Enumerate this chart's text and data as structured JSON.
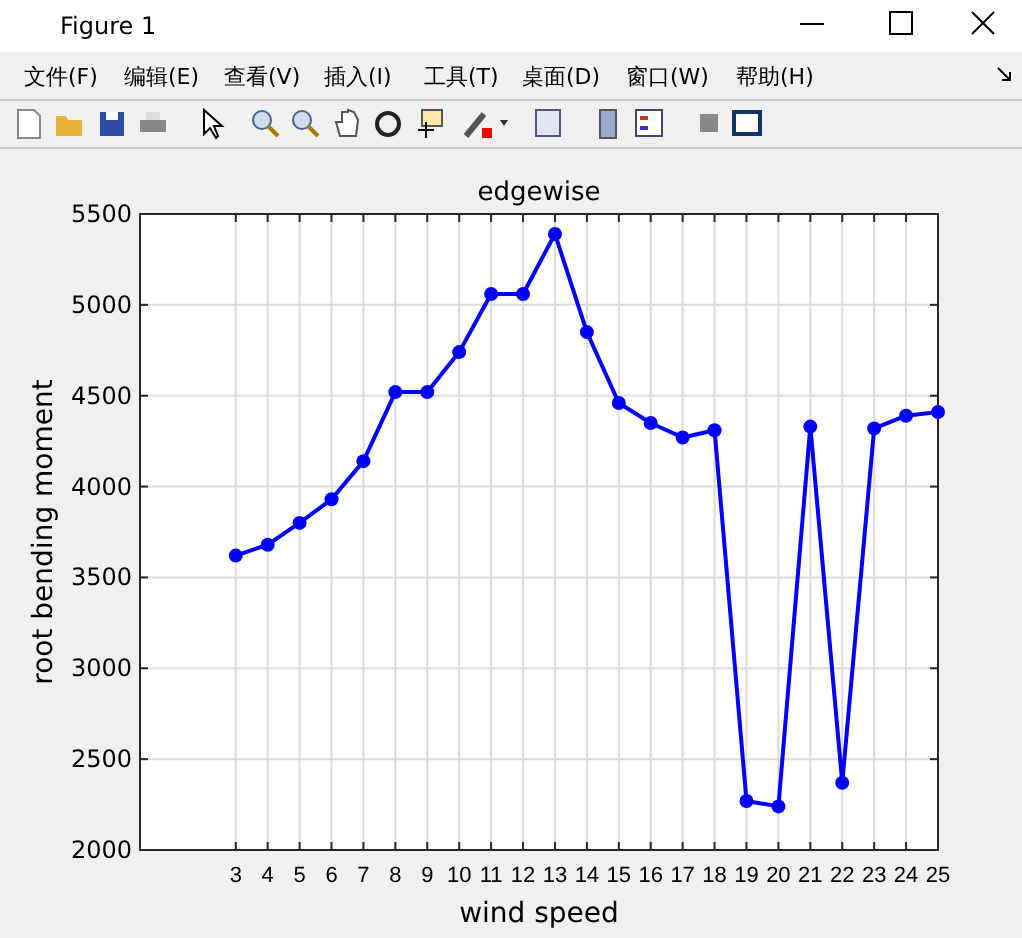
{
  "chart_data": {
    "type": "line",
    "title": "edgewise",
    "xlabel": "wind speed",
    "ylabel": "root bending moment",
    "x": [
      3,
      4,
      5,
      6,
      7,
      8,
      9,
      10,
      11,
      12,
      13,
      14,
      15,
      16,
      17,
      18,
      19,
      20,
      21,
      22,
      23,
      24,
      25
    ],
    "series": [
      {
        "color": "#0000ff",
        "values": [
          3620,
          3680,
          3800,
          3930,
          4140,
          4520,
          4520,
          4740,
          5060,
          5060,
          5390,
          4850,
          4460,
          4350,
          4270,
          4310,
          2270,
          2240,
          4330,
          2370,
          4320,
          4390,
          4410
        ]
      }
    ],
    "xlim": [
      0,
      25
    ],
    "xticks": [
      3,
      4,
      5,
      6,
      7,
      8,
      9,
      10,
      11,
      12,
      13,
      14,
      15,
      16,
      17,
      18,
      19,
      20,
      21,
      22,
      23,
      24,
      25
    ],
    "ylim": [
      2000,
      5500
    ],
    "yticks": [
      2000,
      2500,
      3000,
      3500,
      4000,
      4500,
      5000,
      5500
    ],
    "grid": true,
    "marker": "circle",
    "line_style": "solid",
    "annotations": [
      "Figure 1",
      "文件(F)",
      "编辑(E)",
      "查看(V)",
      "插入(I)",
      "工具(T)",
      "桌面(D)",
      "窗口(W)",
      "帮助(H)"
    ]
  }
}
